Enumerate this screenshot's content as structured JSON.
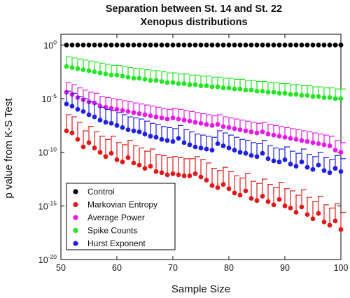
{
  "chart_data": {
    "type": "scatter",
    "title_lines": [
      "Separation between St. 14 and St. 22",
      "Xenopus distributions"
    ],
    "xlabel": "Sample Size",
    "ylabel": "p value from K-S Test",
    "xlim": [
      50,
      100
    ],
    "ylim_log10": [
      -20,
      1
    ],
    "y_scale": "log",
    "x_ticks": [
      50,
      60,
      70,
      80,
      90,
      100
    ],
    "y_ticks": [
      {
        "base": "10",
        "exp": "0",
        "log10": 0
      },
      {
        "base": "10",
        "exp": "-5",
        "log10": -5
      },
      {
        "base": "10",
        "exp": "-10",
        "log10": -10
      },
      {
        "base": "10",
        "exp": "-15",
        "log10": -15
      },
      {
        "base": "10",
        "exp": "-20",
        "log10": -20
      }
    ],
    "grid": false,
    "legend_position": "bottom-left",
    "error_bars": "upper",
    "x": [
      51,
      52,
      53,
      54,
      55,
      56,
      57,
      58,
      59,
      60,
      61,
      62,
      63,
      64,
      65,
      66,
      67,
      68,
      69,
      70,
      71,
      72,
      73,
      74,
      75,
      76,
      77,
      78,
      79,
      80,
      81,
      82,
      83,
      84,
      85,
      86,
      87,
      88,
      89,
      90,
      91,
      92,
      93,
      94,
      95,
      96,
      97,
      98,
      99,
      100
    ],
    "series": [
      {
        "name": "Control",
        "color": "#000000",
        "log10_p": [
          0,
          0,
          0,
          0,
          0,
          0,
          0,
          0,
          0,
          0,
          0,
          0,
          0,
          0,
          0,
          0,
          0,
          0,
          0,
          0,
          0,
          0,
          0,
          0,
          0,
          0,
          0,
          0,
          0,
          0,
          0,
          0,
          0,
          0,
          0,
          0,
          0,
          0,
          0,
          0,
          0,
          0,
          0,
          0,
          0,
          0,
          0,
          0,
          0,
          0
        ],
        "log10_upper": [
          0,
          0,
          0,
          0,
          0,
          0,
          0,
          0,
          0,
          0,
          0,
          0,
          0,
          0,
          0,
          0,
          0,
          0,
          0,
          0,
          0,
          0,
          0,
          0,
          0,
          0,
          0,
          0,
          0,
          0,
          0,
          0,
          0,
          0,
          0,
          0,
          0,
          0,
          0,
          0,
          0,
          0,
          0,
          0,
          0,
          0,
          0,
          0,
          0,
          0
        ]
      },
      {
        "name": "Markovian Entropy",
        "color": "#e01919",
        "log10_p": [
          -8.0,
          -8.2,
          -8.8,
          -9.5,
          -9.1,
          -9.6,
          -10.0,
          -10.4,
          -10.1,
          -10.7,
          -10.9,
          -10.5,
          -11.0,
          -11.2,
          -11.5,
          -11.3,
          -11.8,
          -11.9,
          -12.1,
          -12.0,
          -12.1,
          -12.2,
          -12.2,
          -12.0,
          -12.3,
          -12.6,
          -13.1,
          -13.3,
          -13.0,
          -13.4,
          -13.8,
          -14.0,
          -13.6,
          -14.3,
          -14.5,
          -14.1,
          -14.6,
          -14.9,
          -14.4,
          -15.0,
          -15.2,
          -15.6,
          -15.1,
          -15.8,
          -16.2,
          -15.7,
          -16.5,
          -16.8,
          -16.4,
          -17.2
        ],
        "log10_upper": [
          -6.5,
          -6.7,
          -7.2,
          -8.0,
          -7.6,
          -8.1,
          -8.5,
          -8.8,
          -8.5,
          -9.1,
          -9.3,
          -8.9,
          -9.4,
          -9.6,
          -9.9,
          -9.7,
          -10.2,
          -10.3,
          -10.5,
          -10.4,
          -10.5,
          -10.6,
          -10.6,
          -10.4,
          -10.7,
          -11.0,
          -11.5,
          -11.7,
          -11.4,
          -11.8,
          -12.2,
          -12.4,
          -12.0,
          -12.7,
          -12.9,
          -12.5,
          -13.0,
          -13.3,
          -12.8,
          -13.4,
          -13.6,
          -14.0,
          -13.5,
          -14.2,
          -14.6,
          -14.1,
          -14.9,
          -15.2,
          -14.8,
          -15.6
        ]
      },
      {
        "name": "Average Power",
        "color": "#e619e6",
        "log10_p": [
          -4.4,
          -4.6,
          -4.9,
          -5.1,
          -5.3,
          -5.4,
          -5.7,
          -5.8,
          -5.9,
          -6.0,
          -6.1,
          -6.2,
          -6.3,
          -6.4,
          -6.5,
          -6.6,
          -6.7,
          -6.8,
          -6.9,
          -6.8,
          -6.9,
          -7.0,
          -7.1,
          -7.2,
          -7.3,
          -7.4,
          -7.5,
          -7.4,
          -7.6,
          -7.7,
          -7.8,
          -7.9,
          -8.0,
          -8.1,
          -8.2,
          -8.1,
          -8.3,
          -8.4,
          -8.5,
          -8.6,
          -8.7,
          -8.8,
          -8.9,
          -9.0,
          -9.1,
          -9.2,
          -9.3,
          -9.4,
          -9.8,
          -10.0
        ],
        "log10_upper": [
          -3.5,
          -3.7,
          -4.0,
          -4.2,
          -4.4,
          -4.5,
          -4.8,
          -4.9,
          -5.0,
          -5.1,
          -5.2,
          -5.3,
          -5.4,
          -5.5,
          -5.6,
          -5.7,
          -5.8,
          -5.9,
          -6.0,
          -5.9,
          -6.0,
          -6.1,
          -6.2,
          -6.3,
          -6.4,
          -6.5,
          -6.6,
          -6.5,
          -6.7,
          -6.8,
          -6.9,
          -7.0,
          -7.1,
          -7.2,
          -7.3,
          -7.2,
          -7.4,
          -7.5,
          -7.6,
          -7.7,
          -7.8,
          -7.9,
          -8.0,
          -8.1,
          -8.2,
          -8.3,
          -8.4,
          -8.5,
          -8.9,
          -9.1
        ]
      },
      {
        "name": "Spike Counts",
        "color": "#22e622",
        "log10_p": [
          -2.0,
          -2.1,
          -2.2,
          -2.3,
          -2.4,
          -2.5,
          -2.6,
          -2.7,
          -2.8,
          -2.8,
          -2.9,
          -3.0,
          -3.1,
          -3.1,
          -3.2,
          -3.3,
          -3.3,
          -3.4,
          -3.5,
          -3.5,
          -3.6,
          -3.6,
          -3.7,
          -3.7,
          -3.8,
          -3.8,
          -3.9,
          -3.9,
          -4.0,
          -4.0,
          -4.1,
          -4.1,
          -4.2,
          -4.2,
          -4.3,
          -4.3,
          -4.4,
          -4.4,
          -4.5,
          -4.5,
          -4.6,
          -4.6,
          -4.7,
          -4.7,
          -4.8,
          -4.8,
          -4.9,
          -4.9,
          -5.0,
          -5.0
        ],
        "log10_upper": [
          -1.1,
          -1.2,
          -1.3,
          -1.4,
          -1.5,
          -1.6,
          -1.7,
          -1.8,
          -1.9,
          -1.9,
          -2.0,
          -2.1,
          -2.2,
          -2.2,
          -2.3,
          -2.4,
          -2.4,
          -2.5,
          -2.6,
          -2.6,
          -2.7,
          -2.7,
          -2.8,
          -2.8,
          -2.9,
          -2.9,
          -3.0,
          -3.0,
          -3.1,
          -3.1,
          -3.2,
          -3.2,
          -3.3,
          -3.3,
          -3.4,
          -3.4,
          -3.5,
          -3.5,
          -3.6,
          -3.6,
          -3.7,
          -3.7,
          -3.8,
          -3.8,
          -3.9,
          -3.9,
          -4.0,
          -4.0,
          -4.1,
          -4.1
        ]
      },
      {
        "name": "Hurst Exponent",
        "color": "#1f1fe6",
        "log10_p": [
          -5.5,
          -5.7,
          -6.0,
          -6.2,
          -6.5,
          -6.7,
          -7.0,
          -7.2,
          -7.3,
          -7.5,
          -7.7,
          -7.9,
          -8.0,
          -8.1,
          -8.3,
          -8.5,
          -8.6,
          -8.8,
          -8.9,
          -9.0,
          -8.7,
          -9.1,
          -9.3,
          -9.5,
          -9.6,
          -9.7,
          -9.8,
          -9.2,
          -9.4,
          -9.6,
          -9.8,
          -10.0,
          -10.1,
          -10.3,
          -10.4,
          -10.1,
          -10.6,
          -10.8,
          -10.9,
          -10.7,
          -11.1,
          -11.3,
          -10.9,
          -11.4,
          -11.6,
          -11.2,
          -11.7,
          -11.9,
          -11.5,
          -11.8
        ],
        "log10_upper": [
          -4.3,
          -4.5,
          -4.8,
          -5.0,
          -5.3,
          -5.5,
          -5.8,
          -6.0,
          -6.1,
          -6.3,
          -6.5,
          -6.7,
          -6.8,
          -6.9,
          -7.1,
          -7.3,
          -7.4,
          -7.6,
          -7.7,
          -7.8,
          -7.5,
          -7.9,
          -8.1,
          -8.3,
          -8.4,
          -8.5,
          -8.6,
          -8.0,
          -8.2,
          -8.4,
          -8.6,
          -8.8,
          -8.9,
          -9.1,
          -9.2,
          -8.9,
          -9.4,
          -9.6,
          -9.7,
          -9.5,
          -9.9,
          -10.1,
          -9.7,
          -10.2,
          -10.4,
          -10.0,
          -10.5,
          -10.7,
          -10.3,
          -10.6
        ]
      }
    ]
  }
}
